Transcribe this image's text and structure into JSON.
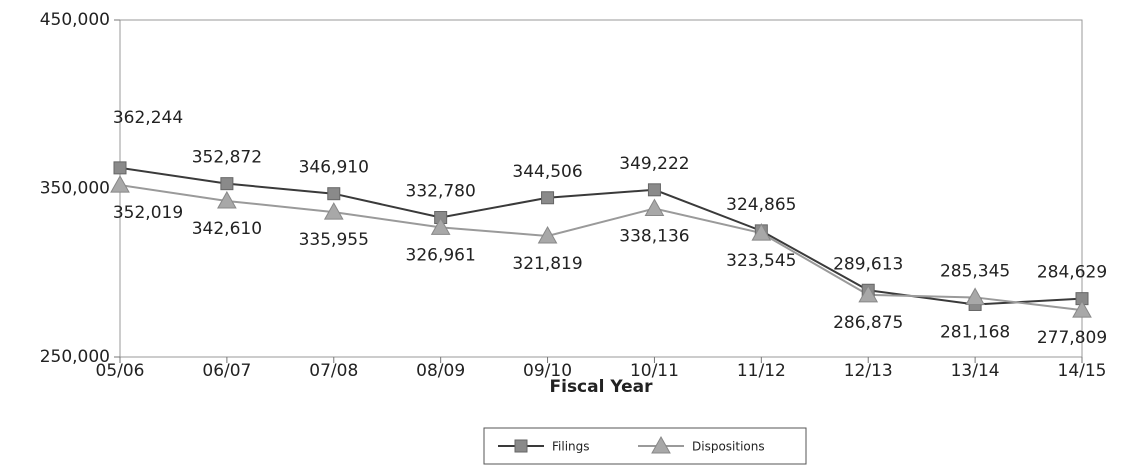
{
  "chart_data": {
    "type": "line",
    "xlabel": "Fiscal Year",
    "categories": [
      "05/06",
      "06/07",
      "07/08",
      "08/09",
      "09/10",
      "10/11",
      "11/12",
      "12/13",
      "13/14",
      "14/15"
    ],
    "series": [
      {
        "name": "Filings",
        "color": "#3a3a3a",
        "marker_color": "#8a8a8a",
        "marker": "square",
        "values": [
          362244,
          352872,
          346910,
          332780,
          344506,
          349222,
          324865,
          289613,
          281168,
          284629
        ],
        "value_labels": [
          "362,244",
          "352,872",
          "346,910",
          "332,780",
          "344,506",
          "349,222",
          "324,865",
          "289,613",
          "281,168",
          "284,629"
        ]
      },
      {
        "name": "Dispositions",
        "color": "#9a9a9a",
        "marker_color": "#a8a8a8",
        "marker": "triangle",
        "values": [
          352019,
          342610,
          335955,
          326961,
          321819,
          338136,
          323545,
          286875,
          285345,
          277809
        ],
        "value_labels": [
          "352,019",
          "342,610",
          "335,955",
          "326,961",
          "321,819",
          "338,136",
          "323,545",
          "286,875",
          "285,345",
          "277,809"
        ]
      }
    ],
    "ylim": [
      250000,
      450000
    ],
    "yticks": [
      {
        "value": 250000,
        "label": "250,000"
      },
      {
        "value": 350000,
        "label": "350,000"
      },
      {
        "value": 450000,
        "label": "450,000"
      }
    ],
    "legend": "bottom"
  }
}
